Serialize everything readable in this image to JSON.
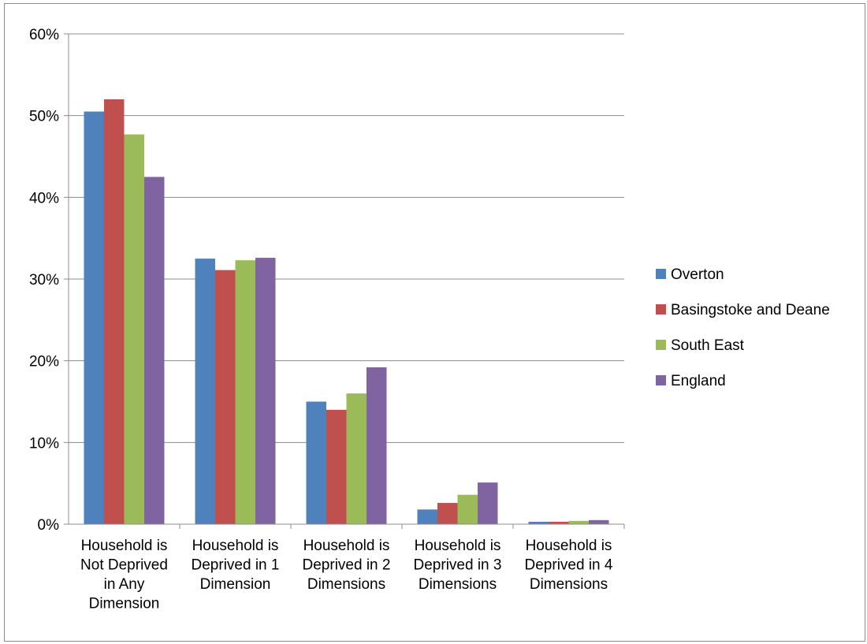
{
  "chart_data": {
    "type": "bar",
    "title": "",
    "xlabel": "",
    "ylabel": "",
    "ylim": [
      0,
      60
    ],
    "yticks": [
      0,
      10,
      20,
      30,
      40,
      50,
      60
    ],
    "ytick_format": "percent",
    "grid": true,
    "legend_position": "right",
    "categories": [
      [
        "Household is",
        "Not Deprived",
        "in Any",
        "Dimension"
      ],
      [
        "Household is",
        "Deprived in 1",
        "Dimension"
      ],
      [
        "Household is",
        "Deprived in 2",
        "Dimensions"
      ],
      [
        "Household is",
        "Deprived in 3",
        "Dimensions"
      ],
      [
        "Household is",
        "Deprived in 4",
        "Dimensions"
      ]
    ],
    "series": [
      {
        "name": "Overton",
        "color": "#4f81bd",
        "values": [
          50.5,
          32.5,
          15.0,
          1.8,
          0.3
        ]
      },
      {
        "name": "Basingstoke and Deane",
        "color": "#c0504d",
        "values": [
          52.0,
          31.1,
          14.0,
          2.6,
          0.3
        ]
      },
      {
        "name": "South East",
        "color": "#9bbb59",
        "values": [
          47.7,
          32.3,
          16.0,
          3.6,
          0.4
        ]
      },
      {
        "name": "England",
        "color": "#8064a2",
        "values": [
          42.5,
          32.6,
          19.2,
          5.1,
          0.5
        ]
      }
    ]
  }
}
